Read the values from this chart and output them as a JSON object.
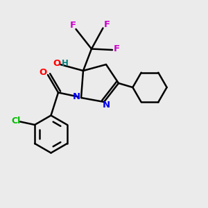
{
  "bg_color": "#ebebeb",
  "bond_color": "#000000",
  "bond_width": 1.8,
  "atom_colors": {
    "N": "#0000ee",
    "O": "#ff0000",
    "H": "#008080",
    "Cl": "#00bb00",
    "F": "#cc00cc"
  },
  "figsize": [
    3.0,
    3.0
  ],
  "dpi": 100
}
